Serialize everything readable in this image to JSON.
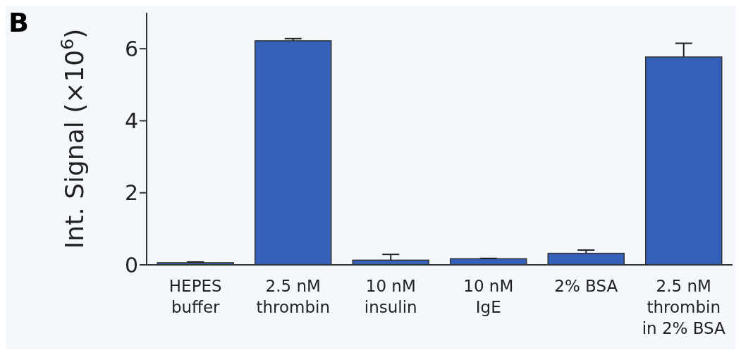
{
  "chart_data": {
    "type": "bar",
    "ylabel": "Int. Signal (×10$^{6}$)",
    "annotations": [
      "B"
    ],
    "categories": [
      "HEPES\nbuffer",
      "2.5 nM\nthrombin",
      "10 nM\ninsulin",
      "10 nM\nIgE",
      "2% BSA",
      "2.5 nM\nthrombin\nin 2% BSA"
    ],
    "values": [
      0.06,
      6.22,
      0.13,
      0.17,
      0.32,
      5.77
    ],
    "errors": [
      [
        0.06,
        0.08
      ],
      [
        6.22,
        6.28
      ],
      [
        0.13,
        0.29
      ],
      [
        0.17,
        0.18
      ],
      [
        0.32,
        0.41
      ],
      [
        5.77,
        6.15
      ]
    ],
    "color": "#3562b8",
    "ylim": [
      0,
      7
    ],
    "yticks": [
      0,
      2,
      4,
      6
    ],
    "grid": false
  }
}
